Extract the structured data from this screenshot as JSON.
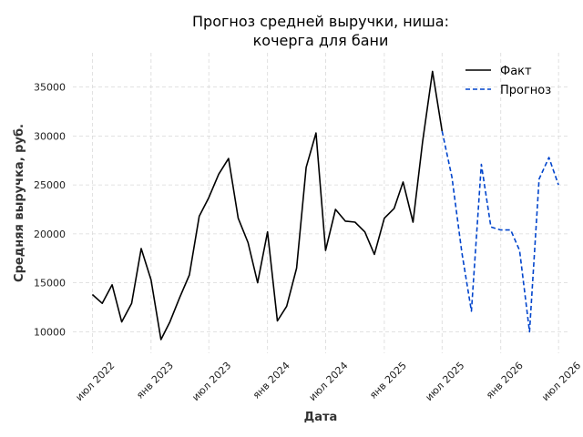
{
  "chart_data": {
    "type": "line",
    "title": "Прогноз средней выручки, ниша:\nкочерга для бани",
    "xlabel": "Дата",
    "ylabel": "Средняя выручка, руб.",
    "ylim": [
      7800,
      38500
    ],
    "x_range": [
      "2022-05-01",
      "2026-08-01"
    ],
    "yticks": [
      10000,
      15000,
      20000,
      25000,
      30000,
      35000
    ],
    "xticks": [
      {
        "date": "2022-07-01",
        "label": "июл 2022"
      },
      {
        "date": "2023-01-01",
        "label": "янв 2023"
      },
      {
        "date": "2023-07-01",
        "label": "июл 2023"
      },
      {
        "date": "2024-01-01",
        "label": "янв 2024"
      },
      {
        "date": "2024-07-01",
        "label": "июл 2024"
      },
      {
        "date": "2025-01-01",
        "label": "янв 2025"
      },
      {
        "date": "2025-07-01",
        "label": "июл 2025"
      },
      {
        "date": "2026-01-01",
        "label": "янв 2026"
      },
      {
        "date": "2026-07-01",
        "label": "июл 2026"
      }
    ],
    "grid": true,
    "legend_position": "top-right",
    "series": [
      {
        "name": "Факт",
        "color": "#000000",
        "style": "solid",
        "points": [
          {
            "x": "2022-07-01",
            "y": 13800
          },
          {
            "x": "2022-08-01",
            "y": 12900
          },
          {
            "x": "2022-09-01",
            "y": 14800
          },
          {
            "x": "2022-10-01",
            "y": 11000
          },
          {
            "x": "2022-11-01",
            "y": 12900
          },
          {
            "x": "2022-12-01",
            "y": 18500
          },
          {
            "x": "2023-01-01",
            "y": 15300
          },
          {
            "x": "2023-02-01",
            "y": 9200
          },
          {
            "x": "2023-03-01",
            "y": 11000
          },
          {
            "x": "2023-04-01",
            "y": 13500
          },
          {
            "x": "2023-05-01",
            "y": 15800
          },
          {
            "x": "2023-06-01",
            "y": 21800
          },
          {
            "x": "2023-07-01",
            "y": 23700
          },
          {
            "x": "2023-08-01",
            "y": 26100
          },
          {
            "x": "2023-09-01",
            "y": 27700
          },
          {
            "x": "2023-10-01",
            "y": 21600
          },
          {
            "x": "2023-11-01",
            "y": 19100
          },
          {
            "x": "2023-12-01",
            "y": 15000
          },
          {
            "x": "2024-01-01",
            "y": 20200
          },
          {
            "x": "2024-02-01",
            "y": 11100
          },
          {
            "x": "2024-03-01",
            "y": 12600
          },
          {
            "x": "2024-04-01",
            "y": 16500
          },
          {
            "x": "2024-05-01",
            "y": 26800
          },
          {
            "x": "2024-06-01",
            "y": 30300
          },
          {
            "x": "2024-07-01",
            "y": 18300
          },
          {
            "x": "2024-08-01",
            "y": 22500
          },
          {
            "x": "2024-09-01",
            "y": 21300
          },
          {
            "x": "2024-10-01",
            "y": 21200
          },
          {
            "x": "2024-11-01",
            "y": 20200
          },
          {
            "x": "2024-12-01",
            "y": 17900
          },
          {
            "x": "2025-01-01",
            "y": 21600
          },
          {
            "x": "2025-02-01",
            "y": 22600
          },
          {
            "x": "2025-03-01",
            "y": 25300
          },
          {
            "x": "2025-04-01",
            "y": 21200
          },
          {
            "x": "2025-05-01",
            "y": 29400
          },
          {
            "x": "2025-06-01",
            "y": 36600
          },
          {
            "x": "2025-07-01",
            "y": 30500
          }
        ]
      },
      {
        "name": "Прогноз",
        "color": "#0044cc",
        "style": "dashed",
        "points": [
          {
            "x": "2025-07-01",
            "y": 30500
          },
          {
            "x": "2025-08-01",
            "y": 25800
          },
          {
            "x": "2025-09-01",
            "y": 18100
          },
          {
            "x": "2025-10-01",
            "y": 12100
          },
          {
            "x": "2025-11-01",
            "y": 27100
          },
          {
            "x": "2025-12-01",
            "y": 20700
          },
          {
            "x": "2026-01-01",
            "y": 20400
          },
          {
            "x": "2026-02-01",
            "y": 20400
          },
          {
            "x": "2026-03-01",
            "y": 18300
          },
          {
            "x": "2026-04-01",
            "y": 10000
          },
          {
            "x": "2026-05-01",
            "y": 25600
          },
          {
            "x": "2026-06-01",
            "y": 27800
          },
          {
            "x": "2026-07-01",
            "y": 25000
          }
        ]
      }
    ]
  }
}
